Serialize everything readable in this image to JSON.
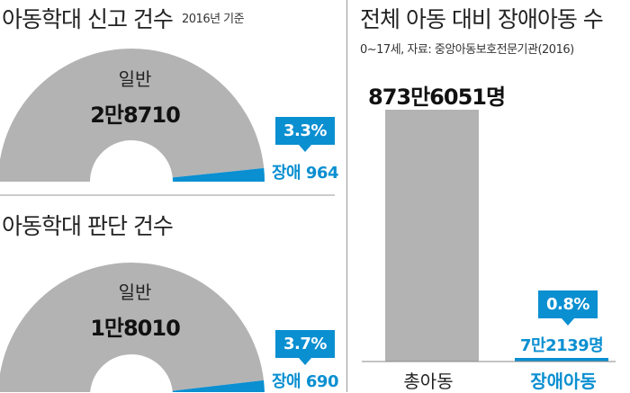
{
  "chart_data": [
    {
      "type": "pie",
      "title": "아동학대 신고 건수",
      "subtitle": "2016년 기준",
      "series": [
        {
          "name": "일반",
          "value": 28710,
          "label": "2만8710"
        },
        {
          "name": "장애",
          "value": 964,
          "label": "964"
        }
      ],
      "highlight_percent": "3.3%"
    },
    {
      "type": "pie",
      "title": "아동학대 판단 건수",
      "series": [
        {
          "name": "일반",
          "value": 18010,
          "label": "1만8010"
        },
        {
          "name": "장애",
          "value": 690,
          "label": "690"
        }
      ],
      "highlight_percent": "3.7%"
    },
    {
      "type": "bar",
      "title": "전체 아동 대비 장애아동 수",
      "subtitle": "0~17세, 자료: 중앙아동보호전문기관(2016)",
      "categories": [
        "총아동",
        "장애아동"
      ],
      "values": [
        8736051,
        72139
      ],
      "value_labels": [
        "873만6051명",
        "7만2139명"
      ],
      "highlight_percent": "0.8%"
    }
  ],
  "colors": {
    "main": "#b3b3b3",
    "accent": "#0a8fd1",
    "divider": "#999999"
  }
}
